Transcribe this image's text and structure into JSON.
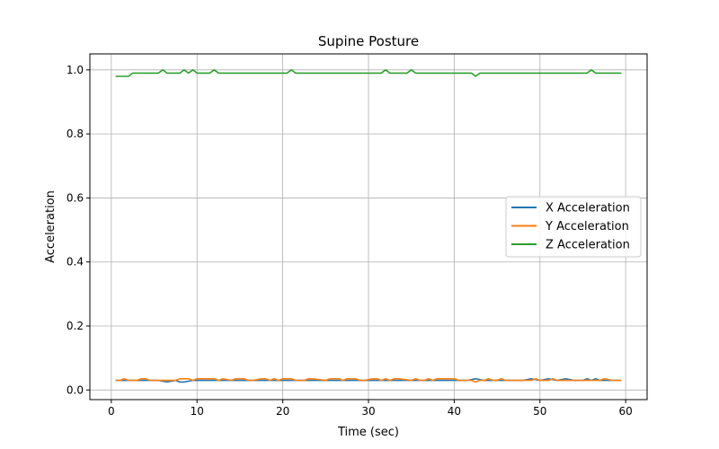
{
  "chart_data": {
    "type": "line",
    "title": "Supine Posture",
    "xlabel": "Time (sec)",
    "ylabel": "Acceleration",
    "xlim": [
      -2.5,
      62.5
    ],
    "ylim": [
      -0.03,
      1.05
    ],
    "xticks": [
      0,
      10,
      20,
      30,
      40,
      50,
      60
    ],
    "yticks": [
      0.0,
      0.2,
      0.4,
      0.6,
      0.8,
      1.0
    ],
    "xtick_labels": [
      "0",
      "10",
      "20",
      "30",
      "40",
      "50",
      "60"
    ],
    "ytick_labels": [
      "0.0",
      "0.2",
      "0.4",
      "0.6",
      "0.8",
      "1.0"
    ],
    "grid": true,
    "legend_position": "center-right",
    "series": [
      {
        "name": "X Acceleration",
        "color": "#1f77b4",
        "x": [
          0.5,
          1.5,
          2.5,
          3.5,
          4.5,
          5.5,
          6.5,
          7.5,
          8.0,
          8.5,
          9.5,
          10.5,
          11.5,
          12.5,
          14,
          16,
          18,
          20,
          22,
          24,
          26,
          28,
          30,
          32,
          34,
          36,
          38,
          40,
          41.5,
          42.5,
          43.5,
          44.5,
          46,
          48,
          49,
          50,
          51,
          52,
          53,
          54,
          55,
          55.5,
          56,
          56.5,
          57,
          58,
          59.5
        ],
        "y": [
          0.03,
          0.03,
          0.03,
          0.03,
          0.03,
          0.03,
          0.025,
          0.03,
          0.025,
          0.025,
          0.03,
          0.03,
          0.03,
          0.03,
          0.03,
          0.03,
          0.03,
          0.03,
          0.03,
          0.03,
          0.03,
          0.03,
          0.03,
          0.03,
          0.03,
          0.03,
          0.03,
          0.03,
          0.03,
          0.035,
          0.03,
          0.03,
          0.03,
          0.03,
          0.035,
          0.03,
          0.035,
          0.03,
          0.035,
          0.03,
          0.03,
          0.035,
          0.03,
          0.035,
          0.03,
          0.03,
          0.03
        ]
      },
      {
        "name": "Y Acceleration",
        "color": "#ff7f0e",
        "x": [
          0.5,
          1.0,
          1.5,
          2.0,
          3.0,
          3.5,
          4.0,
          4.5,
          5.5,
          6.5,
          7.5,
          8.0,
          9.0,
          9.5,
          10.0,
          11.0,
          12.0,
          12.5,
          13.0,
          14.0,
          14.5,
          15.5,
          16.0,
          16.5,
          17.5,
          18.0,
          18.5,
          19.0,
          19.5,
          20.0,
          21.0,
          21.5,
          22.5,
          23.0,
          23.5,
          25.0,
          25.5,
          26.5,
          27.0,
          27.5,
          28.5,
          29.0,
          29.5,
          30.5,
          31.0,
          31.5,
          32.0,
          32.5,
          33.0,
          33.5,
          35.0,
          35.5,
          36.0,
          36.5,
          37.0,
          37.5,
          38.0,
          38.5,
          40.0,
          40.5,
          41.5,
          42.0,
          42.5,
          43.0,
          43.5,
          44.0,
          44.5,
          45.0,
          45.5,
          46.0,
          47.0,
          48.0,
          49.0,
          49.5,
          50.0,
          51.0,
          51.5,
          52.0,
          53.0,
          54.0,
          55.0,
          56.0,
          57.0,
          57.5,
          58.5,
          59.5
        ],
        "y": [
          0.03,
          0.03,
          0.035,
          0.03,
          0.03,
          0.035,
          0.035,
          0.03,
          0.03,
          0.03,
          0.03,
          0.035,
          0.035,
          0.03,
          0.035,
          0.035,
          0.035,
          0.03,
          0.035,
          0.03,
          0.035,
          0.035,
          0.03,
          0.03,
          0.035,
          0.035,
          0.03,
          0.035,
          0.03,
          0.035,
          0.035,
          0.03,
          0.03,
          0.035,
          0.035,
          0.03,
          0.035,
          0.035,
          0.03,
          0.035,
          0.035,
          0.03,
          0.03,
          0.035,
          0.035,
          0.03,
          0.035,
          0.03,
          0.035,
          0.035,
          0.03,
          0.035,
          0.03,
          0.03,
          0.035,
          0.03,
          0.035,
          0.035,
          0.035,
          0.03,
          0.03,
          0.03,
          0.025,
          0.03,
          0.03,
          0.035,
          0.03,
          0.03,
          0.035,
          0.03,
          0.03,
          0.03,
          0.03,
          0.035,
          0.03,
          0.03,
          0.035,
          0.03,
          0.03,
          0.03,
          0.03,
          0.03,
          0.03,
          0.035,
          0.03,
          0.03
        ]
      },
      {
        "name": "Z Acceleration",
        "color": "#2ca02c",
        "x": [
          0.5,
          2.0,
          2.5,
          5.5,
          6.0,
          6.5,
          8.0,
          8.5,
          9.0,
          9.5,
          10.0,
          11.5,
          12.0,
          12.5,
          20.5,
          21.0,
          21.5,
          31.5,
          32.0,
          32.5,
          34.5,
          35.0,
          35.5,
          42.0,
          42.5,
          43.0,
          55.5,
          56.0,
          56.5,
          59.5
        ],
        "y": [
          0.98,
          0.98,
          0.99,
          0.99,
          1.0,
          0.99,
          0.99,
          1.0,
          0.99,
          1.0,
          0.99,
          0.99,
          1.0,
          0.99,
          0.99,
          1.0,
          0.99,
          0.99,
          1.0,
          0.99,
          0.99,
          1.0,
          0.99,
          0.99,
          0.98,
          0.99,
          0.99,
          1.0,
          0.99,
          0.99
        ]
      }
    ]
  }
}
